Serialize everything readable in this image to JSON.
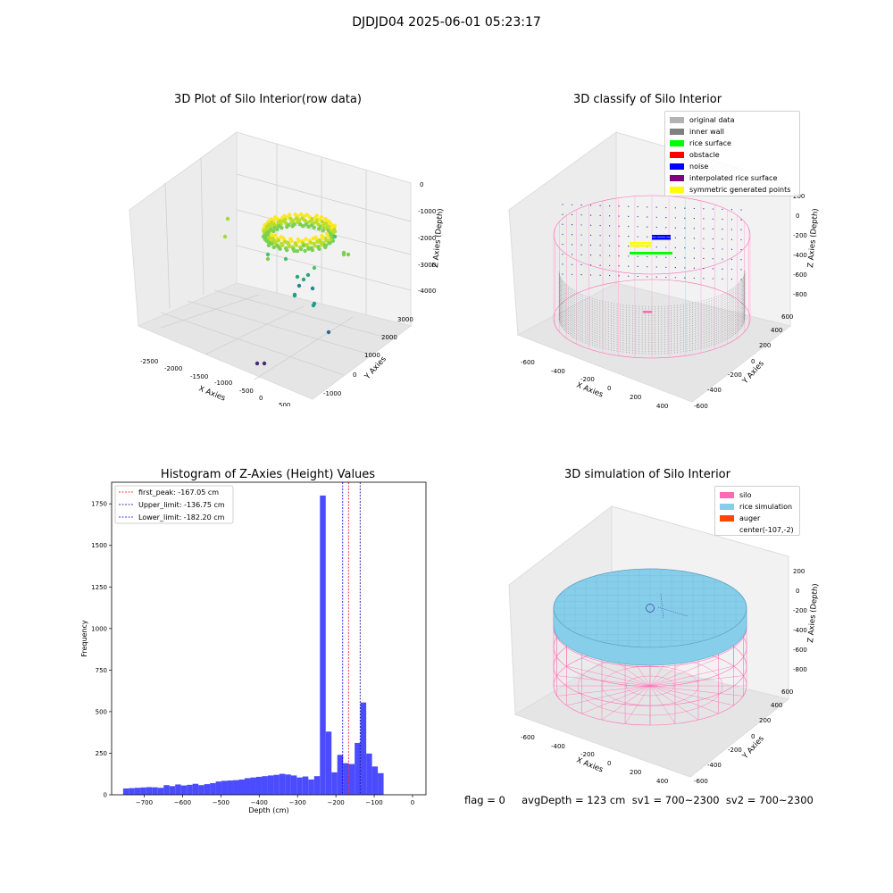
{
  "suptitle": "DJDJD04 2025-06-01 05:23:17",
  "panels": {
    "raw": {
      "title": "3D Plot of Silo Interior(row data)",
      "xlabel": "X Axies",
      "ylabel": "Y Axies",
      "zlabel": "Z Axies (Depth)",
      "x_ticks": [
        "-2500",
        "-2000",
        "-1500",
        "-1000",
        "-500",
        "0",
        "500"
      ],
      "y_ticks": [
        "-1000",
        "0",
        "1000",
        "2000",
        "3000"
      ],
      "z_ticks": [
        "0",
        "-1000",
        "-2000",
        "-3000",
        "-4000"
      ]
    },
    "classify": {
      "title": "3D classify of Silo Interior",
      "xlabel": "X Axies",
      "ylabel": "Y Axies",
      "zlabel": "Z Axies (Depth)",
      "x_ticks": [
        "-600",
        "-400",
        "-200",
        "0",
        "200",
        "400"
      ],
      "y_ticks": [
        "-600",
        "-400",
        "-200",
        "0",
        "200",
        "400",
        "600"
      ],
      "z_ticks": [
        "200",
        "0",
        "-200",
        "-400",
        "-600",
        "-800"
      ],
      "legend": [
        {
          "label": "original data",
          "color": "#b3b3b3"
        },
        {
          "label": "inner wall",
          "color": "#808080"
        },
        {
          "label": "rice surface",
          "color": "#00ff00"
        },
        {
          "label": "obstacle",
          "color": "#ff0000"
        },
        {
          "label": "noise",
          "color": "#0000ff"
        },
        {
          "label": "interpolated rice surface",
          "color": "#800080"
        },
        {
          "label": "symmetric generated points",
          "color": "#ffff00"
        }
      ]
    },
    "simulation": {
      "title": "3D simulation of Silo Interior",
      "xlabel": "X Axies",
      "ylabel": "Y Axies",
      "zlabel": "Z Axies (Depth)",
      "x_ticks": [
        "-600",
        "-400",
        "-200",
        "0",
        "200",
        "400"
      ],
      "y_ticks": [
        "-600",
        "-400",
        "-200",
        "0",
        "200",
        "400",
        "600"
      ],
      "z_ticks": [
        "200",
        "0",
        "-200",
        "-400",
        "-600",
        "-800"
      ],
      "legend": [
        {
          "label": "silo",
          "color": "#ff69b4"
        },
        {
          "label": "rice simulation",
          "color": "#87ceeb"
        },
        {
          "label": "auger",
          "color": "#ff4500"
        },
        {
          "label": "center(-107,-2)",
          "color": ""
        }
      ]
    }
  },
  "footer": "flag = 0     avgDepth = 123 cm  sv1 = 700~2300  sv2 = 700~2300",
  "chart_data": {
    "type": "bar",
    "title": "Histogram of Z-Axies (Height) Values",
    "xlabel": "Depth (cm)",
    "ylabel": "Frequency",
    "xlim": [
      -785,
      35
    ],
    "ylim": [
      0,
      1880
    ],
    "x_ticks": [
      -700,
      -600,
      -500,
      -400,
      -300,
      -200,
      -100,
      0
    ],
    "y_ticks": [
      0,
      250,
      500,
      750,
      1000,
      1250,
      1500,
      1750
    ],
    "bar_color": "#4b4bff",
    "bin_edges_start": -755,
    "bin_width": 15.1,
    "values": [
      38,
      40,
      42,
      44,
      46,
      45,
      42,
      58,
      52,
      62,
      56,
      60,
      66,
      58,
      64,
      70,
      80,
      84,
      86,
      88,
      92,
      100,
      104,
      108,
      112,
      116,
      120,
      126,
      122,
      116,
      104,
      110,
      92,
      112,
      1800,
      380,
      135,
      240,
      190,
      185,
      312,
      555,
      248,
      170,
      130
    ],
    "lines": [
      {
        "label": "first_peak: -167.05 cm",
        "value": -167.05,
        "color": "#ff0000"
      },
      {
        "label": "Upper_limit: -136.75 cm",
        "value": -136.75,
        "color": "#00008b"
      },
      {
        "label": "Lower_limit: -182.20 cm",
        "value": -182.2,
        "color": "#0000ff"
      }
    ]
  }
}
